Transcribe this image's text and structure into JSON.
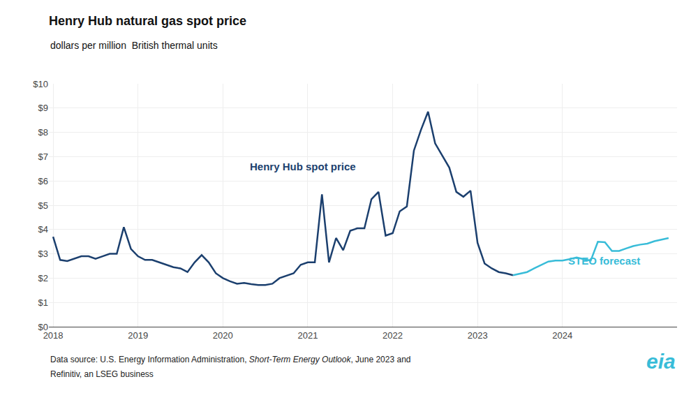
{
  "chart_data": {
    "type": "line",
    "title": "Henry Hub natural gas spot price",
    "subtitle": "dollars per million  British thermal units",
    "footer_pre": "Data source: U.S. Energy Information Administration, ",
    "footer_italic": "Short-Term Energy Outlook",
    "footer_post": ", June 2023 and",
    "footer_line2": "Refinitiv, an LSEG business",
    "logo": "eia",
    "grid": true,
    "xlim": [
      2017.95,
      2025.35
    ],
    "xticks": [
      2018,
      2019,
      2020,
      2021,
      2022,
      2023,
      2024
    ],
    "ylim": [
      0,
      10
    ],
    "yticks": [
      {
        "value": 0,
        "label": "$0"
      },
      {
        "value": 1,
        "label": "$1"
      },
      {
        "value": 2,
        "label": "$2"
      },
      {
        "value": 3,
        "label": "$3"
      },
      {
        "value": 4,
        "label": "$4"
      },
      {
        "value": 5,
        "label": "$5"
      },
      {
        "value": 6,
        "label": "$6"
      },
      {
        "value": 7,
        "label": "$7"
      },
      {
        "value": 8,
        "label": "$8"
      },
      {
        "value": 9,
        "label": "$9"
      },
      {
        "value": 10,
        "label": "$10"
      }
    ],
    "series": [
      {
        "name": "Henry Hub spot price",
        "color": "#1b3f6e",
        "x": [
          2018.0,
          2018.083,
          2018.167,
          2018.25,
          2018.333,
          2018.417,
          2018.5,
          2018.583,
          2018.667,
          2018.75,
          2018.833,
          2018.917,
          2019.0,
          2019.083,
          2019.167,
          2019.25,
          2019.333,
          2019.417,
          2019.5,
          2019.583,
          2019.667,
          2019.75,
          2019.833,
          2019.917,
          2020.0,
          2020.083,
          2020.167,
          2020.25,
          2020.333,
          2020.417,
          2020.5,
          2020.583,
          2020.667,
          2020.75,
          2020.833,
          2020.917,
          2021.0,
          2021.083,
          2021.167,
          2021.25,
          2021.333,
          2021.417,
          2021.5,
          2021.583,
          2021.667,
          2021.75,
          2021.833,
          2021.917,
          2022.0,
          2022.083,
          2022.167,
          2022.25,
          2022.333,
          2022.417,
          2022.5,
          2022.583,
          2022.667,
          2022.75,
          2022.833,
          2022.917,
          2023.0,
          2023.083,
          2023.167,
          2023.25,
          2023.333,
          2023.417
        ],
        "values": [
          3.7,
          2.75,
          2.7,
          2.8,
          2.9,
          2.9,
          2.8,
          2.9,
          3.0,
          3.0,
          4.1,
          3.2,
          2.9,
          2.75,
          2.75,
          2.65,
          2.55,
          2.45,
          2.4,
          2.25,
          2.65,
          2.95,
          2.65,
          2.2,
          2.0,
          1.87,
          1.77,
          1.8,
          1.75,
          1.72,
          1.72,
          1.77,
          2.0,
          2.1,
          2.2,
          2.55,
          2.65,
          2.65,
          5.45,
          2.65,
          3.65,
          3.15,
          3.95,
          4.05,
          4.05,
          5.25,
          5.55,
          3.75,
          3.85,
          4.75,
          4.95,
          7.25,
          8.1,
          8.85,
          7.55,
          7.05,
          6.55,
          5.55,
          5.35,
          5.6,
          3.45,
          2.6,
          2.4,
          2.25,
          2.2,
          2.12
        ]
      },
      {
        "name": "STEO forecast",
        "color": "#38bcd8",
        "x": [
          2023.417,
          2023.5,
          2023.583,
          2023.667,
          2023.75,
          2023.833,
          2023.917,
          2024.0,
          2024.083,
          2024.167,
          2024.25,
          2024.333,
          2024.417,
          2024.5,
          2024.583,
          2024.667,
          2024.75,
          2024.833,
          2024.917,
          2025.0,
          2025.083,
          2025.167,
          2025.25
        ],
        "values": [
          2.12,
          2.18,
          2.25,
          2.4,
          2.55,
          2.68,
          2.72,
          2.72,
          2.78,
          2.85,
          2.78,
          2.72,
          3.5,
          3.48,
          3.12,
          3.12,
          3.22,
          3.32,
          3.38,
          3.42,
          3.52,
          3.58,
          3.65
        ]
      }
    ]
  }
}
